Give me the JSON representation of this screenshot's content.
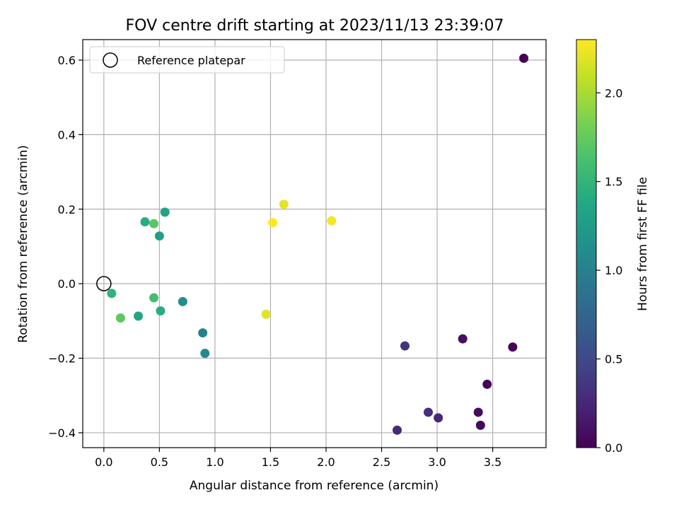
{
  "chart_data": {
    "type": "scatter",
    "title": "FOV centre drift starting at 2023/11/13 23:39:07",
    "xlabel": "Angular distance from reference (arcmin)",
    "ylabel": "Rotation from reference (arcmin)",
    "xlim": [
      -0.19,
      3.98
    ],
    "ylim": [
      -0.44,
      0.655
    ],
    "xticks": [
      0.0,
      0.5,
      1.0,
      1.5,
      2.0,
      2.5,
      3.0,
      3.5
    ],
    "xtick_labels": [
      "0.0",
      "0.5",
      "1.0",
      "1.5",
      "2.0",
      "2.5",
      "3.0",
      "3.5"
    ],
    "yticks": [
      -0.4,
      -0.2,
      0.0,
      0.2,
      0.4,
      0.6
    ],
    "ytick_labels": [
      "−0.4",
      "−0.2",
      "0.0",
      "0.2",
      "0.4",
      "0.6"
    ],
    "grid": true,
    "legend": {
      "placement": "upper left",
      "entries": [
        {
          "label": "Reference platepar",
          "marker": "open-circle"
        }
      ]
    },
    "reference_point": {
      "x": 0.0,
      "y": 0.0
    },
    "colorbar": {
      "label": "Hours from first FF file",
      "colormap": "viridis",
      "range": [
        0.0,
        2.3
      ],
      "ticks": [
        0.0,
        0.5,
        1.0,
        1.5,
        2.0
      ],
      "tick_labels": [
        "0.0",
        "0.5",
        "1.0",
        "1.5",
        "2.0"
      ]
    },
    "points": [
      {
        "x": 3.78,
        "y": 0.605,
        "c": 0.0
      },
      {
        "x": 3.68,
        "y": -0.17,
        "c": 0.02
      },
      {
        "x": 3.45,
        "y": -0.27,
        "c": 0.03
      },
      {
        "x": 3.39,
        "y": -0.38,
        "c": 0.05
      },
      {
        "x": 3.37,
        "y": -0.345,
        "c": 0.07
      },
      {
        "x": 3.23,
        "y": -0.148,
        "c": 0.09
      },
      {
        "x": 3.01,
        "y": -0.36,
        "c": 0.25
      },
      {
        "x": 2.92,
        "y": -0.345,
        "c": 0.3
      },
      {
        "x": 2.71,
        "y": -0.167,
        "c": 0.35
      },
      {
        "x": 2.64,
        "y": -0.393,
        "c": 0.27
      },
      {
        "x": 0.91,
        "y": -0.187,
        "c": 1.08
      },
      {
        "x": 0.89,
        "y": -0.132,
        "c": 1.0
      },
      {
        "x": 0.71,
        "y": -0.048,
        "c": 1.12
      },
      {
        "x": 0.55,
        "y": 0.192,
        "c": 1.32
      },
      {
        "x": 0.5,
        "y": 0.128,
        "c": 1.3
      },
      {
        "x": 0.51,
        "y": -0.073,
        "c": 1.42
      },
      {
        "x": 0.45,
        "y": 0.161,
        "c": 1.7
      },
      {
        "x": 0.45,
        "y": -0.038,
        "c": 1.6
      },
      {
        "x": 0.37,
        "y": 0.166,
        "c": 1.42
      },
      {
        "x": 0.31,
        "y": -0.087,
        "c": 1.35
      },
      {
        "x": 0.15,
        "y": -0.092,
        "c": 1.72
      },
      {
        "x": 0.07,
        "y": -0.026,
        "c": 1.48
      },
      {
        "x": 1.46,
        "y": -0.082,
        "c": 2.2
      },
      {
        "x": 1.52,
        "y": 0.164,
        "c": 2.3
      },
      {
        "x": 1.62,
        "y": 0.213,
        "c": 2.22
      },
      {
        "x": 2.05,
        "y": 0.169,
        "c": 2.26
      }
    ]
  }
}
